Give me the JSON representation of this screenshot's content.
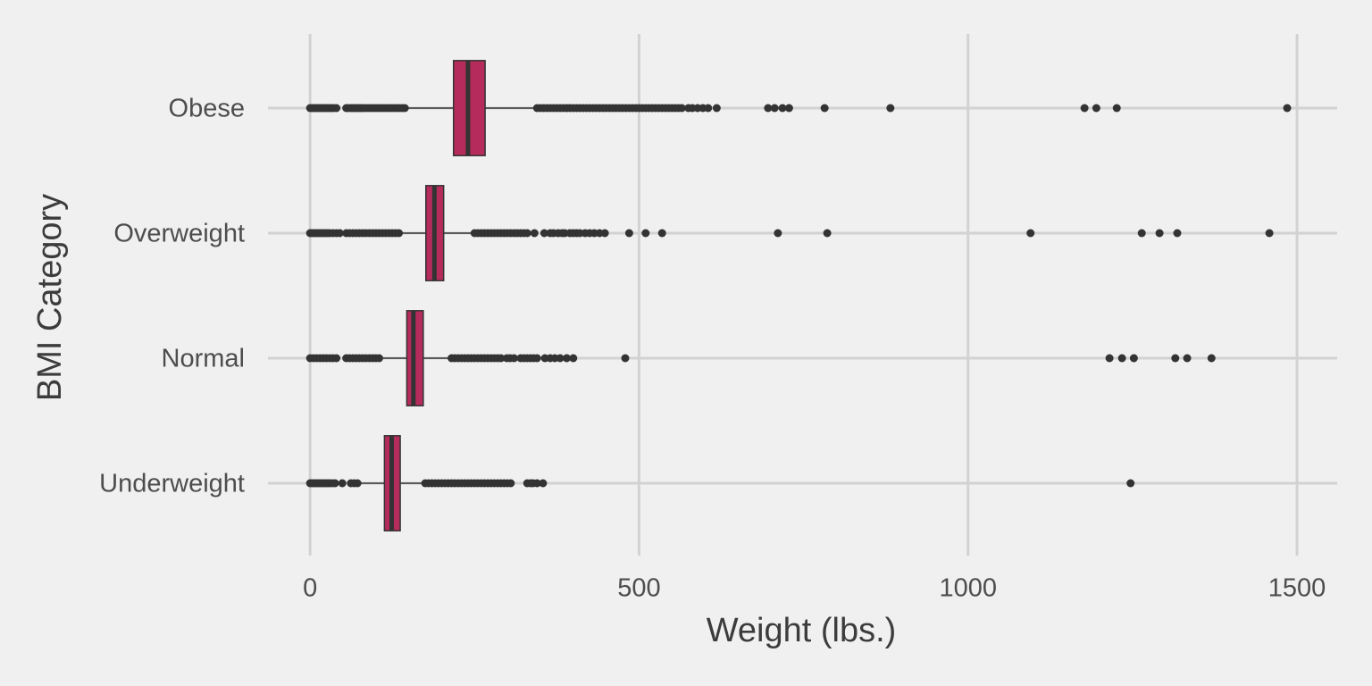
{
  "chart_data": {
    "type": "boxplot",
    "x_label": "Weight (lbs.)",
    "y_label": "BMI Category",
    "categories": [
      "Underweight",
      "Normal",
      "Overweight",
      "Obese"
    ],
    "color": "#b52b5b",
    "xlim": [
      -64,
      1561
    ],
    "xticks": [
      0,
      500,
      1000,
      1500
    ],
    "grid": true,
    "boxes": [
      {
        "whisker_low": 75,
        "q1": 113,
        "median": 124,
        "q3": 137,
        "whisker_high": 170,
        "outliers": [
          0,
          3,
          6,
          9,
          12,
          15,
          18,
          21,
          24,
          27,
          30,
          34,
          38,
          49,
          62,
          67,
          72,
          175,
          180,
          185,
          190,
          195,
          200,
          205,
          210,
          215,
          220,
          225,
          230,
          235,
          240,
          245,
          250,
          255,
          260,
          265,
          270,
          275,
          280,
          285,
          290,
          295,
          300,
          305,
          330,
          335,
          339,
          345,
          354,
          1247
        ]
      },
      {
        "whisker_low": 111,
        "q1": 147,
        "median": 157,
        "q3": 172,
        "whisker_high": 212,
        "outliers": [
          0,
          5,
          10,
          15,
          20,
          25,
          30,
          35,
          40,
          55,
          60,
          65,
          70,
          75,
          80,
          85,
          90,
          95,
          100,
          105,
          215,
          220,
          225,
          230,
          235,
          240,
          245,
          250,
          255,
          260,
          265,
          270,
          275,
          280,
          285,
          290,
          299,
          304,
          310,
          320,
          325,
          330,
          335,
          340,
          345,
          357,
          365,
          372,
          380,
          390,
          400,
          479,
          1215,
          1234,
          1252,
          1315,
          1333,
          1370
        ]
      },
      {
        "whisker_low": 136,
        "q1": 176,
        "median": 189,
        "q3": 203,
        "whisker_high": 248,
        "outliers": [
          0,
          3,
          6,
          9,
          12,
          15,
          18,
          21,
          24,
          27,
          30,
          35,
          40,
          45,
          55,
          60,
          65,
          70,
          75,
          80,
          85,
          90,
          95,
          100,
          105,
          110,
          115,
          120,
          125,
          130,
          135,
          250,
          255,
          260,
          265,
          270,
          275,
          280,
          285,
          290,
          295,
          300,
          305,
          310,
          315,
          320,
          325,
          330,
          341,
          356,
          365,
          370,
          377,
          383,
          387,
          395,
          400,
          405,
          410,
          418,
          425,
          432,
          440,
          448,
          485,
          510,
          535,
          711,
          786,
          1095,
          1264,
          1291,
          1318,
          1458
        ]
      },
      {
        "whisker_low": 147,
        "q1": 218,
        "median": 240,
        "q3": 266,
        "whisker_high": 339,
        "outliers": [
          0,
          3,
          6,
          9,
          12,
          15,
          18,
          21,
          24,
          27,
          30,
          33,
          36,
          40,
          55,
          58,
          62,
          65,
          68,
          71,
          74,
          77,
          80,
          84,
          88,
          92,
          96,
          100,
          104,
          108,
          112,
          116,
          120,
          124,
          128,
          132,
          136,
          140,
          144,
          345,
          350,
          355,
          360,
          365,
          370,
          375,
          380,
          385,
          390,
          395,
          400,
          405,
          410,
          415,
          420,
          425,
          430,
          435,
          440,
          445,
          450,
          455,
          460,
          465,
          470,
          475,
          480,
          485,
          490,
          495,
          500,
          505,
          510,
          515,
          520,
          525,
          530,
          535,
          540,
          545,
          550,
          555,
          560,
          565,
          575,
          581,
          589,
          597,
          605,
          618,
          696,
          706,
          718,
          728,
          782,
          882,
          1177,
          1195,
          1226,
          1485
        ]
      }
    ]
  }
}
